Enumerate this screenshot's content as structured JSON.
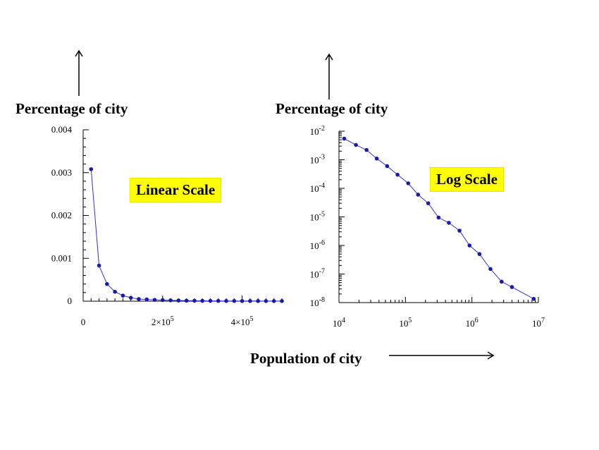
{
  "labels": {
    "left_ylabel": "Percentage of city",
    "right_ylabel": "Percentage of city",
    "xlabel": "Population of city",
    "left_box": "Linear Scale",
    "right_box": "Log Scale"
  },
  "colors": {
    "series": "#3333cc",
    "marker": "#1a1aaa",
    "box": "#ffff00"
  },
  "chart_data": [
    {
      "type": "line",
      "title": "Linear Scale",
      "ylabel": "Percentage of city",
      "xlim": [
        0,
        500000
      ],
      "ylim": [
        0,
        0.004
      ],
      "y_ticks": [
        {
          "v": 0,
          "label": "0"
        },
        {
          "v": 0.001,
          "label": "0.001"
        },
        {
          "v": 0.002,
          "label": "0.002"
        },
        {
          "v": 0.003,
          "label": "0.003"
        },
        {
          "v": 0.004,
          "label": "0.004"
        }
      ],
      "x_ticks": [
        {
          "v": 0,
          "base": "0",
          "exp": ""
        },
        {
          "v": 200000,
          "base": "2×10",
          "exp": "5"
        },
        {
          "v": 400000,
          "base": "4×10",
          "exp": "5"
        }
      ],
      "x": [
        20000,
        40000,
        60000,
        80000,
        100000,
        120000,
        140000,
        160000,
        180000,
        200000,
        220000,
        240000,
        260000,
        280000,
        300000,
        320000,
        340000,
        360000,
        380000,
        400000,
        420000,
        440000,
        460000,
        480000,
        500000
      ],
      "y": [
        0.00308,
        0.00083,
        0.0004,
        0.00022,
        0.00013,
        8e-05,
        5e-05,
        4e-05,
        3e-05,
        2.5e-05,
        2e-05,
        1.5e-05,
        1.2e-05,
        1e-05,
        8e-06,
        7e-06,
        6e-06,
        5e-06,
        5e-06,
        4e-06,
        4e-06,
        4e-06,
        3e-06,
        3e-06,
        3e-06
      ]
    },
    {
      "type": "line",
      "title": "Log Scale",
      "ylabel": "Percentage of city",
      "xlabel": "Population of city",
      "x_scale": "log",
      "y_scale": "log",
      "xlim": [
        10000,
        10000000
      ],
      "ylim": [
        1e-08,
        0.01
      ],
      "y_ticks": [
        {
          "v": -2,
          "base": "10",
          "exp": "-2"
        },
        {
          "v": -3,
          "base": "10",
          "exp": "-3"
        },
        {
          "v": -4,
          "base": "10",
          "exp": "-4"
        },
        {
          "v": -5,
          "base": "10",
          "exp": "-5"
        },
        {
          "v": -6,
          "base": "10",
          "exp": "-6"
        },
        {
          "v": -7,
          "base": "10",
          "exp": "-7"
        },
        {
          "v": -8,
          "base": "10",
          "exp": "-8"
        }
      ],
      "x_ticks": [
        {
          "v": 4,
          "base": "10",
          "exp": "4"
        },
        {
          "v": 5,
          "base": "10",
          "exp": "5"
        },
        {
          "v": 6,
          "base": "10",
          "exp": "6"
        },
        {
          "v": 7,
          "base": "10",
          "exp": "7"
        }
      ],
      "x": [
        12000,
        18000,
        26000,
        37000,
        53000,
        76000,
        110000,
        155000,
        220000,
        315000,
        450000,
        650000,
        920000,
        1300000,
        1900000,
        2800000,
        4000000,
        8500000
      ],
      "y": [
        0.0055,
        0.0033,
        0.0022,
        0.0011,
        0.0006,
        0.0003,
        0.00015,
        6e-05,
        3e-05,
        9.5e-06,
        6.2e-06,
        3.3e-06,
        1e-06,
        5e-07,
        1.5e-07,
        5.4e-08,
        3.5e-08,
        1.35e-08
      ]
    }
  ]
}
